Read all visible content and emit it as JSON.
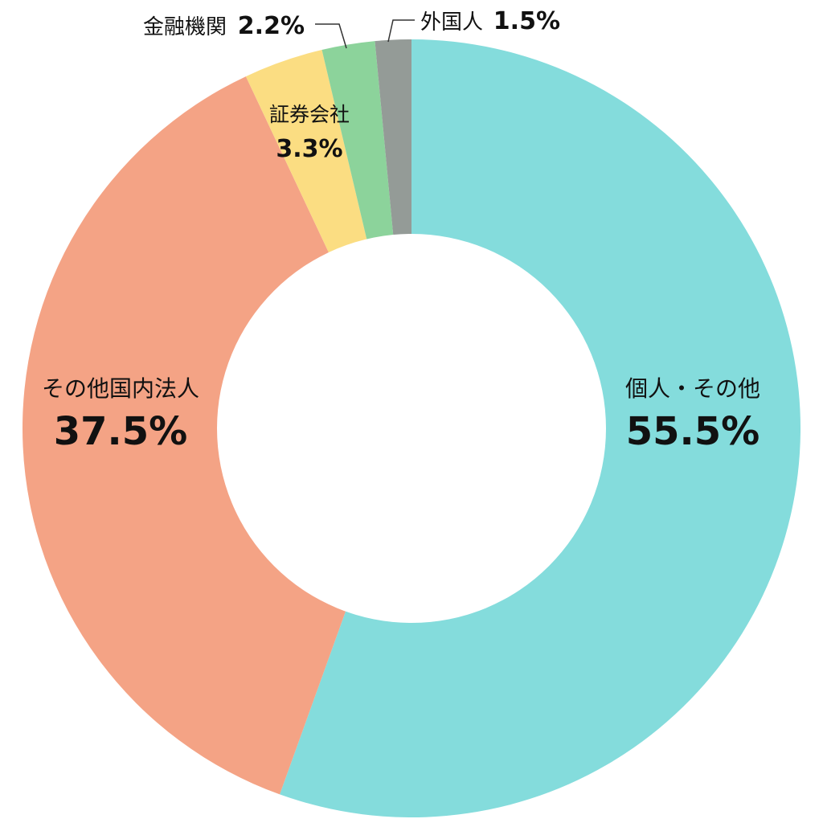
{
  "chart_data": {
    "type": "pie",
    "donut": true,
    "categories": [
      "個人・その他",
      "その他国内法人",
      "証券会社",
      "金融機関",
      "外国人"
    ],
    "values": [
      55.5,
      37.5,
      3.3,
      2.2,
      1.5
    ],
    "value_labels": [
      "55.5%",
      "37.5%",
      "3.3%",
      "2.2%",
      "1.5%"
    ],
    "colors": [
      "#84dcdc",
      "#f4a385",
      "#fbdd82",
      "#8cd39b",
      "#949b97"
    ],
    "start": "12 o'clock",
    "direction": "clockwise",
    "legend": "none"
  }
}
